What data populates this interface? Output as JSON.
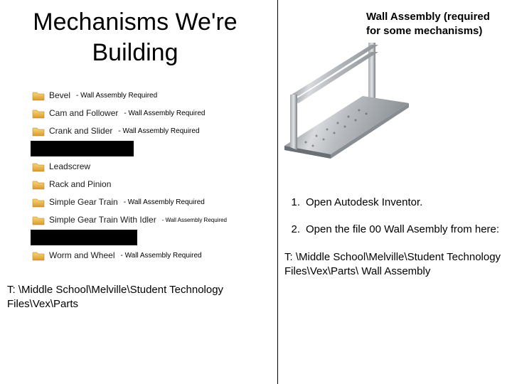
{
  "title": "Mechanisms We're Building",
  "folders": [
    {
      "name": "Bevel",
      "note": "- Wall Assembly Required",
      "blackout": false,
      "blackout_w": 0
    },
    {
      "name": "Cam and Follower",
      "note": "- Wall Assembly Required",
      "blackout": false,
      "blackout_w": 0
    },
    {
      "name": "Crank and Slider",
      "note": "- Wall Assembly Required",
      "blackout": false,
      "blackout_w": 0
    },
    {
      "name": "",
      "note": "",
      "blackout": true,
      "blackout_w": 145
    },
    {
      "name": "Leadscrew",
      "note": "",
      "blackout": false,
      "blackout_w": 0
    },
    {
      "name": "Rack and Pinion",
      "note": "",
      "blackout": false,
      "blackout_w": 0
    },
    {
      "name": "Simple Gear Train",
      "note": "- Wall Assembly Required",
      "blackout": false,
      "blackout_w": 0
    },
    {
      "name": "Simple Gear Train With Idler",
      "note": "- Wall Assembly Required",
      "blackout": false,
      "blackout_w": 0
    },
    {
      "name": "",
      "note": "",
      "blackout": true,
      "blackout_w": 150
    },
    {
      "name": "Worm and Wheel",
      "note": "- Wall Assembly Required",
      "blackout": false,
      "blackout_w": 0
    }
  ],
  "left_path": "T: \\Middle School\\Melville\\Student Technology Files\\Vex\\Parts",
  "right": {
    "caption": "Wall Assembly (required for some mechanisms)",
    "steps": [
      "Open Autodesk Inventor.",
      "Open the file 00 Wall Asembly from here:"
    ],
    "path": "T: \\Middle School\\Melville\\Student Technology Files\\Vex\\Parts\\ Wall Assembly"
  },
  "colors": {
    "folder_top": "#f7d77f",
    "folder_bottom": "#d99a2b",
    "rail_grad_a": "#5f6468",
    "rail_grad_b": "#d8dadd",
    "rail_grad_c": "#8a8f94"
  }
}
